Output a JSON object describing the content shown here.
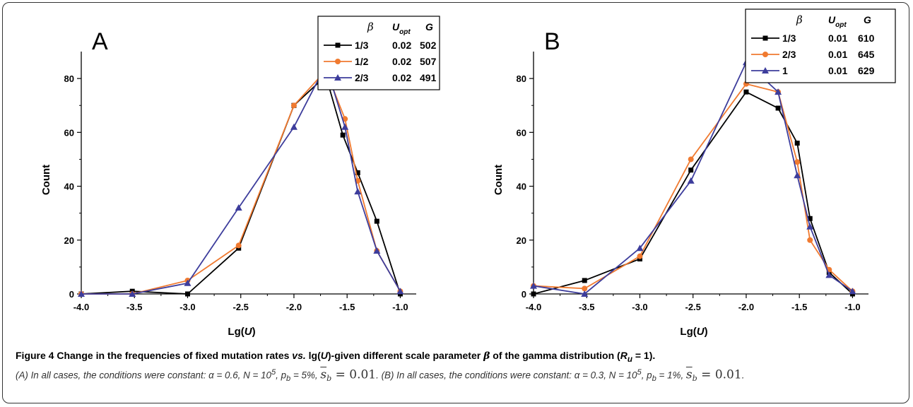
{
  "chart_data": [
    {
      "type": "line",
      "panel_label": "A",
      "xlabel_prefix": "Lg(",
      "xlabel_var": "U",
      "xlabel_suffix": ")",
      "ylabel": "Count",
      "xlim": [
        -4.0,
        -0.85
      ],
      "ylim": [
        0,
        90
      ],
      "xticks": [
        -4.0,
        -3.5,
        -3.0,
        -2.5,
        -2.0,
        -1.5,
        -1.0
      ],
      "xtick_labels": [
        "-4.0",
        "-3.5",
        "-3.0",
        "-2.5",
        "-2.0",
        "-1.5",
        "-1.0"
      ],
      "yticks": [
        0,
        20,
        40,
        60,
        80
      ],
      "yminor": [
        10,
        30,
        50,
        70
      ],
      "grid": false,
      "legend_position": "top-right",
      "legend_headers": [
        "β",
        "U",
        "opt",
        "G"
      ],
      "series": [
        {
          "name": "1/3",
          "u_opt": "0.02",
          "g": "502",
          "color": "#000000",
          "marker": "square",
          "x": [
            -4.0,
            -3.52,
            -3.0,
            -2.52,
            -2.0,
            -1.7,
            -1.54,
            -1.4,
            -1.22,
            -1.0
          ],
          "y": [
            0,
            1,
            0,
            17,
            70,
            81,
            59,
            45,
            27,
            0
          ]
        },
        {
          "name": "1/2",
          "u_opt": "0.02",
          "g": "507",
          "color": "#f07a30",
          "marker": "circle",
          "x": [
            -4.0,
            -3.52,
            -3.0,
            -2.52,
            -2.0,
            -1.7,
            -1.52,
            -1.4,
            -1.22,
            -1.0
          ],
          "y": [
            0,
            0,
            5,
            18,
            70,
            83,
            65,
            42,
            16,
            1
          ]
        },
        {
          "name": "2/3",
          "u_opt": "0.02",
          "g": "491",
          "color": "#3d3d9c",
          "marker": "triangle",
          "x": [
            -4.0,
            -3.52,
            -3.0,
            -2.52,
            -2.0,
            -1.7,
            -1.52,
            -1.4,
            -1.22,
            -1.0
          ],
          "y": [
            0,
            0,
            4,
            32,
            62,
            85,
            62,
            38,
            16,
            1
          ]
        }
      ]
    },
    {
      "type": "line",
      "panel_label": "B",
      "xlabel_prefix": "Lg(",
      "xlabel_var": "U",
      "xlabel_suffix": ")",
      "ylabel": "Count",
      "xlim": [
        -4.0,
        -0.85
      ],
      "ylim": [
        0,
        90
      ],
      "xticks": [
        -4.0,
        -3.5,
        -3.0,
        -2.5,
        -2.0,
        -1.5,
        -1.0
      ],
      "xtick_labels": [
        "-4.0",
        "-3.5",
        "-3.0",
        "-2.5",
        "-2.0",
        "-1.5",
        "-1.0"
      ],
      "yticks": [
        0,
        20,
        40,
        60,
        80
      ],
      "yminor": [
        10,
        30,
        50,
        70
      ],
      "grid": false,
      "legend_position": "top-right",
      "legend_headers": [
        "β",
        "U",
        "opt",
        "G"
      ],
      "series": [
        {
          "name": "1/3",
          "u_opt": "0.01",
          "g": "610",
          "color": "#000000",
          "marker": "square",
          "x": [
            -4.0,
            -3.52,
            -3.0,
            -2.52,
            -2.0,
            -1.7,
            -1.52,
            -1.4,
            -1.22,
            -1.0
          ],
          "y": [
            0,
            5,
            13,
            46,
            75,
            69,
            56,
            28,
            8,
            0
          ]
        },
        {
          "name": "2/3",
          "u_opt": "0.01",
          "g": "645",
          "color": "#f07a30",
          "marker": "circle",
          "x": [
            -4.0,
            -3.52,
            -3.0,
            -2.52,
            -2.0,
            -1.7,
            -1.52,
            -1.4,
            -1.22,
            -1.0
          ],
          "y": [
            3,
            2,
            14,
            50,
            78,
            75,
            49,
            20,
            9,
            1
          ]
        },
        {
          "name": "1",
          "u_opt": "0.01",
          "g": "629",
          "color": "#3d3d9c",
          "marker": "triangle",
          "x": [
            -4.0,
            -3.52,
            -3.0,
            -2.52,
            -2.0,
            -1.7,
            -1.52,
            -1.4,
            -1.22,
            -1.0
          ],
          "y": [
            3,
            0,
            17,
            42,
            86,
            75,
            44,
            25,
            7,
            1
          ]
        }
      ]
    }
  ],
  "caption": {
    "title_part1": "Figure 4 Change in the frequencies of fixed mutation rates ",
    "title_vs": "vs.",
    "title_part2": " lg(",
    "title_U": "U",
    "title_part3": ")-given different scale parameter ",
    "title_beta": "β",
    "title_part4": " of the gamma distribution (",
    "title_R": "R",
    "title_Rsub": "u",
    "title_part5": " = 1).",
    "desc_a_part1": "(A) In all cases, the conditions were constant: α = 0.6, N = 10",
    "desc_a_sup": "5",
    "desc_a_part2": ", p",
    "desc_a_sub": "b",
    "desc_a_part3": " = 5%, ",
    "desc_sb": "s",
    "desc_sb_sub": "b",
    "desc_a_val": " = 0.01",
    "desc_b_part1": ". (B) In all cases, the conditions were constant: α = 0.3, N = 10",
    "desc_b_sup": "5",
    "desc_b_part2": ", p",
    "desc_b_sub": "b",
    "desc_b_part3": " = 1%, ",
    "desc_b_val": " = 0.01",
    "desc_end": "."
  }
}
